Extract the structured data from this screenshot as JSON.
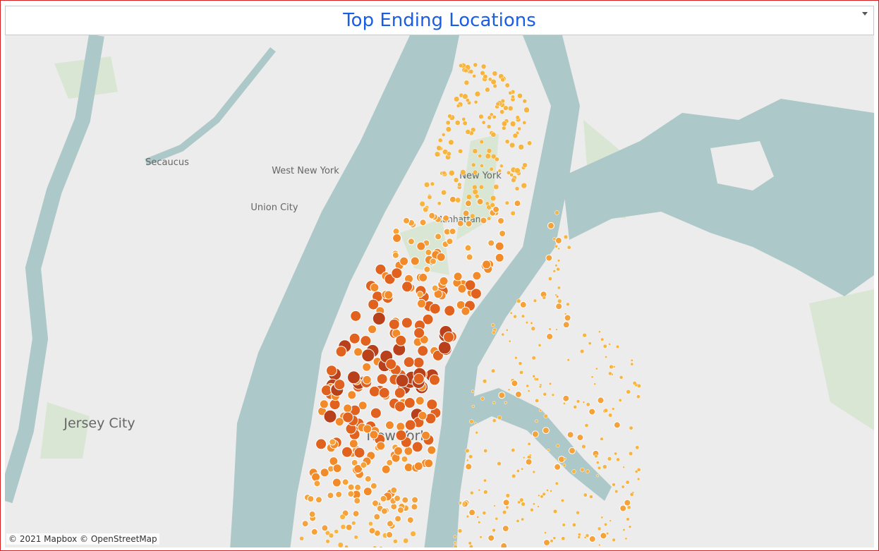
{
  "header": {
    "title": "Top Ending Locations"
  },
  "map": {
    "labels": [
      "Secaucus",
      "West New York",
      "Union City",
      "New York",
      "Manhattan",
      "Jersey City",
      "New York"
    ],
    "attribution": "© 2021 Mapbox © OpenStreetMap"
  }
}
